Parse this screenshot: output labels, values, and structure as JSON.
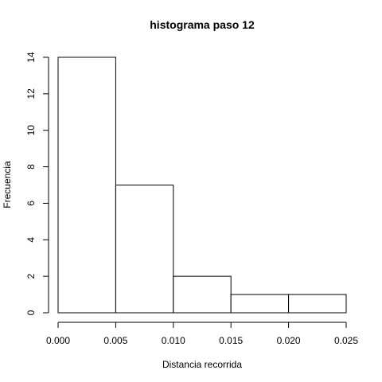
{
  "chart_data": {
    "type": "histogram",
    "title": "histograma paso  12",
    "xlabel": "Distancia recorrida",
    "ylabel": "Frecuencia",
    "bins": [
      {
        "from": 0.0,
        "to": 0.005,
        "count": 14
      },
      {
        "from": 0.005,
        "to": 0.01,
        "count": 7
      },
      {
        "from": 0.01,
        "to": 0.015,
        "count": 2
      },
      {
        "from": 0.015,
        "to": 0.02,
        "count": 1
      },
      {
        "from": 0.02,
        "to": 0.025,
        "count": 1
      }
    ],
    "xlim": [
      0.0,
      0.025
    ],
    "ylim": [
      0,
      14
    ],
    "xticks": [
      "0.000",
      "0.005",
      "0.010",
      "0.015",
      "0.020",
      "0.025"
    ],
    "xtick_values": [
      0.0,
      0.005,
      0.01,
      0.015,
      0.02,
      0.025
    ],
    "yticks": [
      "0",
      "2",
      "4",
      "6",
      "8",
      "10",
      "12",
      "14"
    ],
    "ytick_values": [
      0,
      2,
      4,
      6,
      8,
      10,
      12,
      14
    ],
    "grid": false,
    "bar_fill": "#ffffff",
    "bar_stroke": "#000000"
  }
}
